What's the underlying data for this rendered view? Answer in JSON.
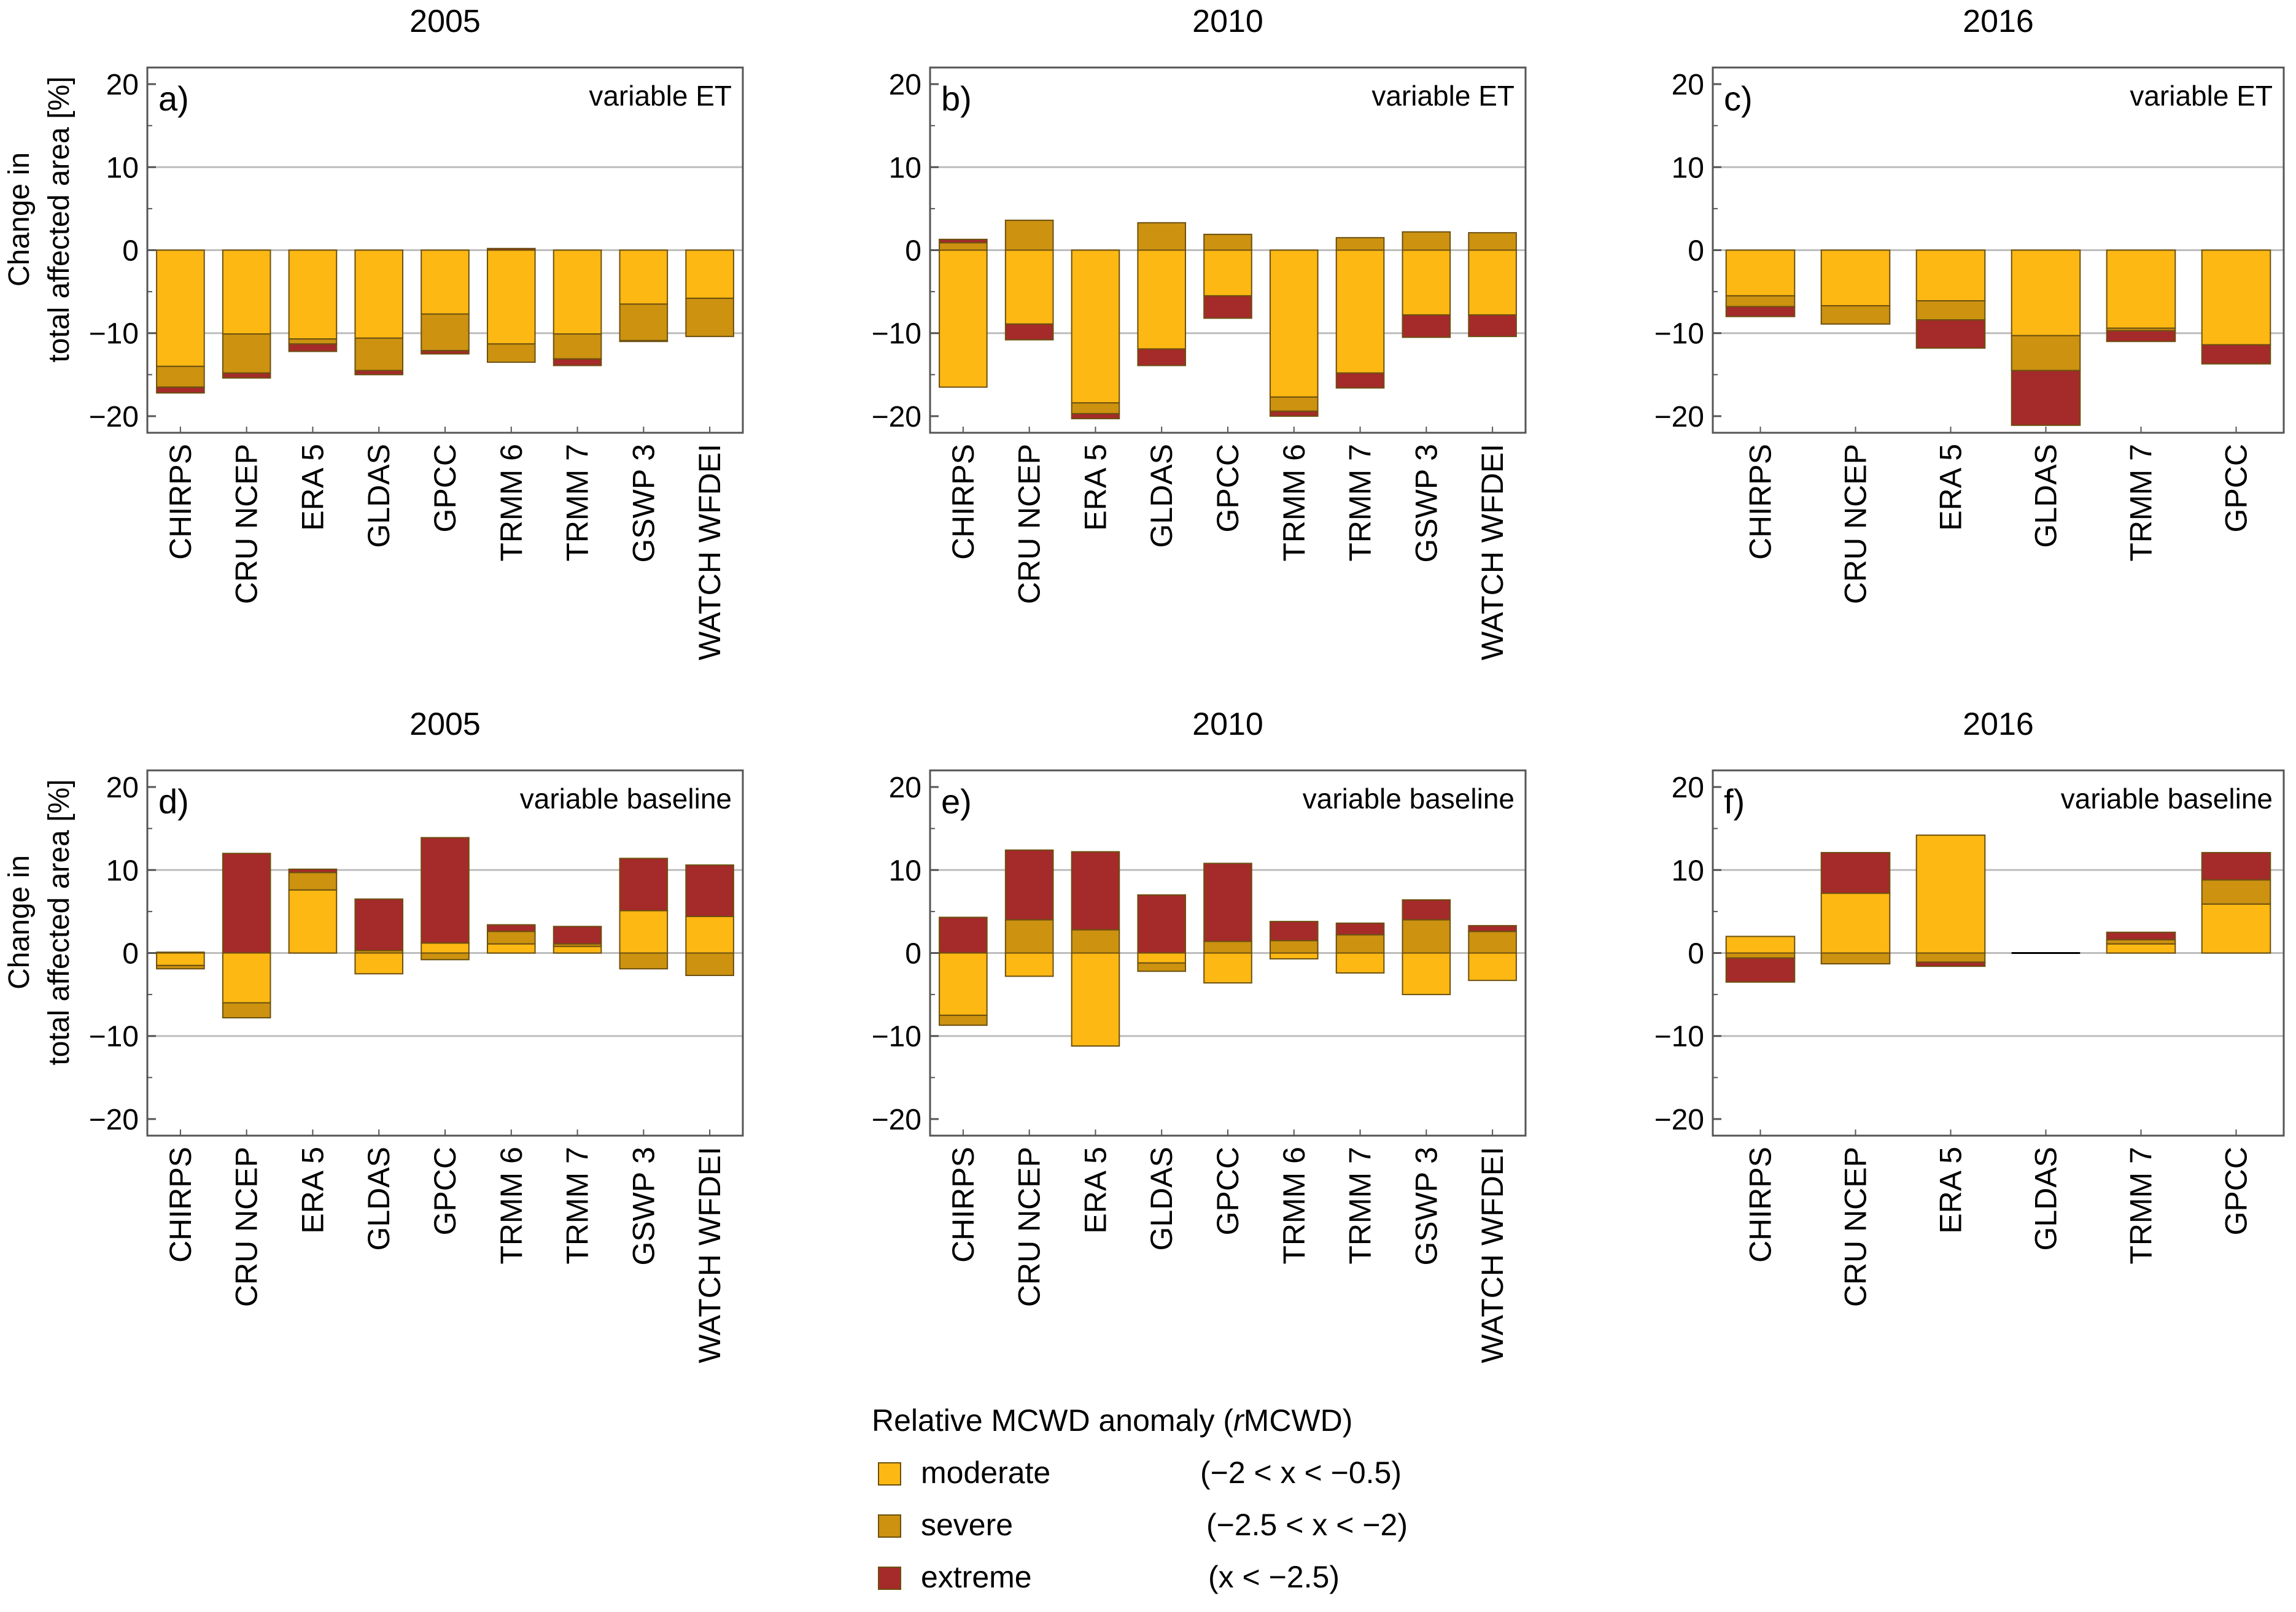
{
  "colors": {
    "moderate": "#FDB813",
    "severe": "#CC9210",
    "extreme": "#A52A2A",
    "edge": "#6b5010",
    "grid": "#bdbdbd"
  },
  "legend": {
    "title_pre": "Relative MCWD anomaly (",
    "title_italic": "r",
    "title_post": "MCWD)",
    "items": [
      {
        "key": "moderate",
        "label": "moderate",
        "range": "(−2 < x < −0.5)"
      },
      {
        "key": "severe",
        "label": "severe",
        "range": "(−2.5 < x < −2)"
      },
      {
        "key": "extreme",
        "label": "extreme",
        "range": "(x < −2.5)"
      }
    ]
  },
  "ylabel_line1": "Change in",
  "ylabel_line2": "total affected area [%]",
  "chart_data": [
    {
      "type": "bar",
      "stacked": true,
      "title": "2005",
      "panel_label": "a)",
      "annotation": "variable ET",
      "ylim": [
        -22,
        22
      ],
      "yticks": [
        20,
        10,
        0,
        -10,
        -20
      ],
      "grid": [
        10,
        0,
        -10
      ],
      "categories": [
        "CHIRPS",
        "CRU NCEP",
        "ERA 5",
        "GLDAS",
        "GPCC",
        "TRMM 6",
        "TRMM 7",
        "GSWP 3",
        "WATCH WFDEI"
      ],
      "series": [
        {
          "name": "moderate",
          "values": [
            -14.0,
            -10.1,
            -10.7,
            -10.6,
            -7.7,
            -11.3,
            -10.1,
            -6.5,
            -5.8
          ]
        },
        {
          "name": "severe",
          "values": [
            -2.5,
            -4.7,
            -0.6,
            -3.9,
            -4.4,
            -2.2,
            -3.0,
            -4.4,
            -4.6
          ]
        },
        {
          "name": "extreme",
          "values": [
            -0.7,
            -0.6,
            -0.9,
            -0.5,
            -0.4,
            0.2,
            -0.8,
            -0.1,
            0.0
          ]
        }
      ]
    },
    {
      "type": "bar",
      "stacked": true,
      "title": "2010",
      "panel_label": "b)",
      "annotation": "variable ET",
      "ylim": [
        -22,
        22
      ],
      "yticks": [
        20,
        10,
        0,
        -10,
        -20
      ],
      "grid": [
        10,
        0,
        -10
      ],
      "categories": [
        "CHIRPS",
        "CRU NCEP",
        "ERA 5",
        "GLDAS",
        "GPCC",
        "TRMM 6",
        "TRMM 7",
        "GSWP 3",
        "WATCH WFDEI"
      ],
      "series": [
        {
          "name": "moderate",
          "values": [
            -16.5,
            -8.9,
            -18.4,
            -11.9,
            -5.5,
            -17.7,
            -14.8,
            -7.8,
            -7.8
          ]
        },
        {
          "name": "severe",
          "values": [
            0.9,
            3.6,
            -1.3,
            3.3,
            1.9,
            -1.7,
            1.5,
            2.2,
            2.1
          ]
        },
        {
          "name": "extreme",
          "values": [
            0.4,
            -1.9,
            -0.6,
            -2.0,
            -2.7,
            -0.6,
            -1.8,
            -2.7,
            -2.6
          ]
        }
      ]
    },
    {
      "type": "bar",
      "stacked": true,
      "title": "2016",
      "panel_label": "c)",
      "annotation": "variable ET",
      "ylim": [
        -22,
        22
      ],
      "yticks": [
        20,
        10,
        0,
        -10,
        -20
      ],
      "grid": [
        10,
        0,
        -10
      ],
      "categories": [
        "CHIRPS",
        "CRU NCEP",
        "ERA 5",
        "GLDAS",
        "TRMM 7",
        "GPCC"
      ],
      "series": [
        {
          "name": "moderate",
          "values": [
            -5.5,
            -6.7,
            -6.1,
            -10.3,
            -9.4,
            -11.4
          ]
        },
        {
          "name": "severe",
          "values": [
            -1.3,
            -2.2,
            -2.3,
            -4.2,
            -0.3,
            0.0
          ]
        },
        {
          "name": "extreme",
          "values": [
            -1.2,
            0.0,
            -3.4,
            -6.6,
            -1.3,
            -2.3
          ]
        }
      ]
    },
    {
      "type": "bar",
      "stacked": true,
      "title": "2005",
      "panel_label": "d)",
      "annotation": "variable baseline",
      "ylim": [
        -22,
        22
      ],
      "yticks": [
        20,
        10,
        0,
        -10,
        -20
      ],
      "grid": [
        10,
        0,
        -10
      ],
      "categories": [
        "CHIRPS",
        "CRU NCEP",
        "ERA 5",
        "GLDAS",
        "GPCC",
        "TRMM 6",
        "TRMM 7",
        "GSWP 3",
        "WATCH WFDEI"
      ],
      "series": [
        {
          "name": "moderate",
          "values": [
            -1.5,
            -6.0,
            7.6,
            -2.5,
            1.2,
            1.1,
            0.8,
            5.1,
            4.4
          ]
        },
        {
          "name": "severe",
          "values": [
            -0.4,
            -1.8,
            2.1,
            0.3,
            -0.8,
            1.5,
            0.3,
            -1.9,
            -2.7
          ]
        },
        {
          "name": "extreme",
          "values": [
            0.1,
            12.0,
            0.4,
            6.2,
            12.7,
            0.8,
            2.1,
            6.3,
            6.2
          ]
        }
      ]
    },
    {
      "type": "bar",
      "stacked": true,
      "title": "2010",
      "panel_label": "e)",
      "annotation": "variable baseline",
      "ylim": [
        -22,
        22
      ],
      "yticks": [
        20,
        10,
        0,
        -10,
        -20
      ],
      "grid": [
        10,
        0,
        -10
      ],
      "categories": [
        "CHIRPS",
        "CRU NCEP",
        "ERA 5",
        "GLDAS",
        "GPCC",
        "TRMM 6",
        "TRMM 7",
        "GSWP 3",
        "WATCH WFDEI"
      ],
      "series": [
        {
          "name": "moderate",
          "values": [
            -7.5,
            -2.8,
            -11.2,
            -1.2,
            -3.6,
            -0.7,
            -2.4,
            -5.0,
            -3.3
          ]
        },
        {
          "name": "severe",
          "values": [
            -1.2,
            4.0,
            2.8,
            -1.0,
            1.4,
            1.5,
            2.2,
            4.0,
            2.6
          ]
        },
        {
          "name": "extreme",
          "values": [
            4.3,
            8.4,
            9.4,
            7.0,
            9.4,
            2.3,
            1.4,
            2.4,
            0.7
          ]
        }
      ]
    },
    {
      "type": "bar",
      "stacked": true,
      "title": "2016",
      "panel_label": "f)",
      "annotation": "variable baseline",
      "ylim": [
        -22,
        22
      ],
      "yticks": [
        20,
        10,
        0,
        -10,
        -20
      ],
      "grid": [
        10,
        0,
        -10
      ],
      "categories": [
        "CHIRPS",
        "CRU NCEP",
        "ERA 5",
        "GLDAS",
        "TRMM 7",
        "GPCC"
      ],
      "series": [
        {
          "name": "moderate",
          "values": [
            2.0,
            7.2,
            14.2,
            0.0,
            1.1,
            5.9
          ]
        },
        {
          "name": "severe",
          "values": [
            -0.6,
            -1.3,
            -1.1,
            0.0,
            0.5,
            2.9
          ]
        },
        {
          "name": "extreme",
          "values": [
            -2.9,
            4.9,
            -0.5,
            0.0,
            0.9,
            3.3
          ]
        }
      ]
    }
  ]
}
